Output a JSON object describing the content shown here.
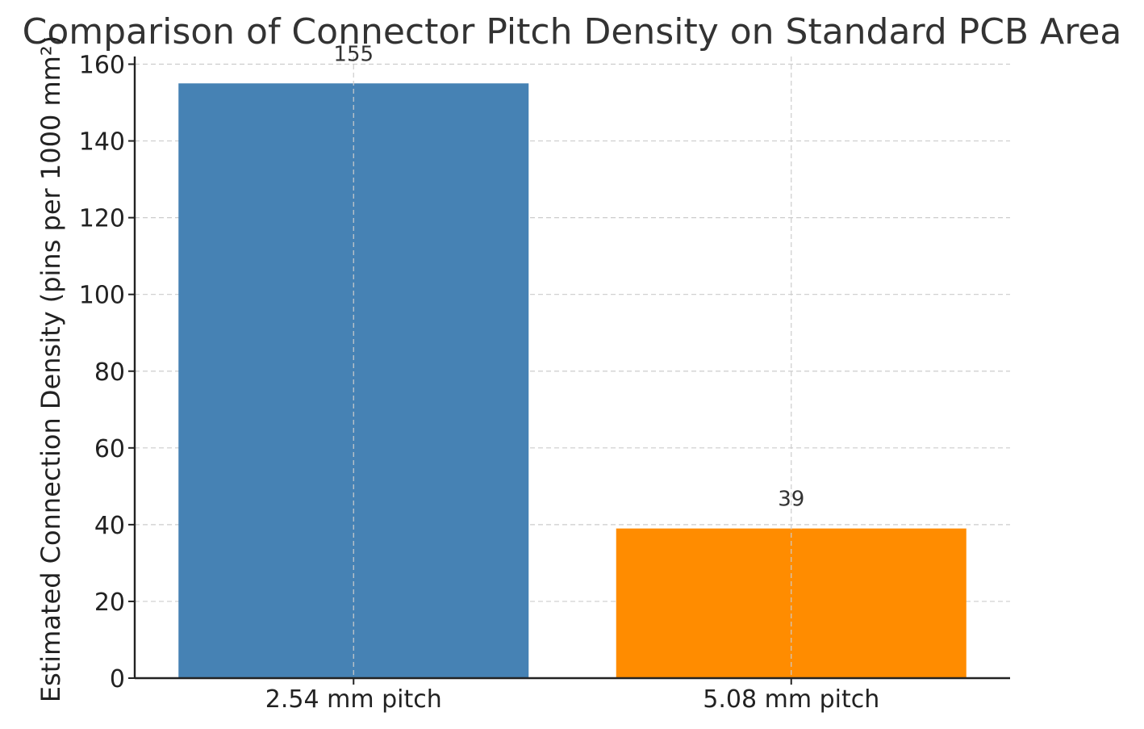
{
  "chart_data": {
    "type": "bar",
    "title": "Comparison of Connector Pitch Density on Standard PCB Area",
    "xlabel": "",
    "ylabel": "Estimated Connection Density (pins per 1000 mm²)",
    "categories": [
      "2.54 mm pitch",
      "5.08 mm pitch"
    ],
    "values": [
      155,
      39
    ],
    "data_labels": [
      "155",
      "39"
    ],
    "colors": [
      "#4682b4",
      "#ff8c00"
    ],
    "ylim": [
      0,
      162
    ],
    "yticks": [
      0,
      20,
      40,
      60,
      80,
      100,
      120,
      140,
      160
    ],
    "grid": true
  }
}
